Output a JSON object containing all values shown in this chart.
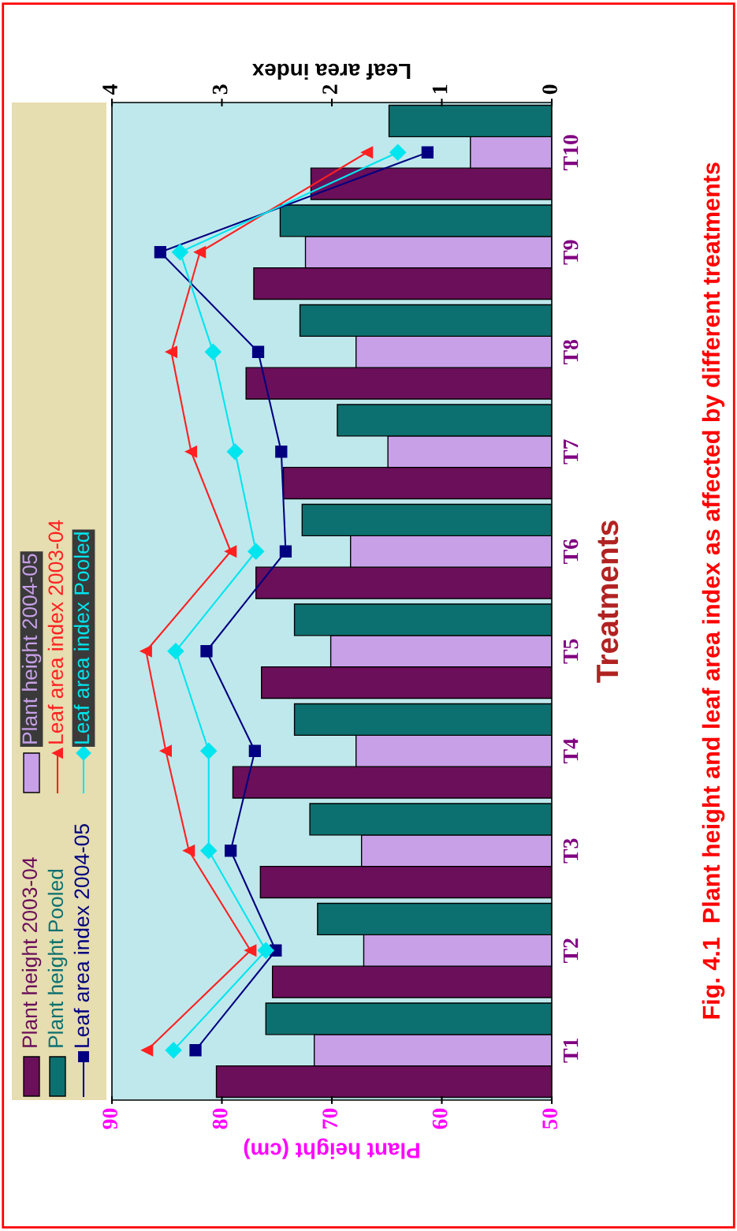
{
  "chart_data": {
    "type": "bar",
    "orientation": "horizontal",
    "title": "Fig. 4.1  Plant height and leaf area index as affected by different treatments",
    "xlabel": "Plant height (cm)",
    "x2label": "Leaf area index",
    "ylabel": "Treatments",
    "categories": [
      "T10",
      "T9",
      "T8",
      "T7",
      "T6",
      "T5",
      "T4",
      "T3",
      "T2",
      "T1"
    ],
    "xlim": [
      90,
      50
    ],
    "xticks": [
      50,
      60,
      70,
      80,
      90
    ],
    "x2lim": [
      4,
      0
    ],
    "x2ticks": [
      0,
      1,
      2,
      3,
      4
    ],
    "grid": false,
    "legend": "left",
    "series": [
      {
        "name": "Plant height 2003-04",
        "color": "#6b0f5a",
        "values": [
          71.9,
          77.1,
          77.8,
          74.4,
          76.9,
          76.4,
          79.0,
          76.5,
          75.4,
          80.5
        ]
      },
      {
        "name": "Plant height 2004-05",
        "color": "#c8a0e8",
        "values": [
          57.4,
          72.4,
          67.8,
          64.9,
          68.3,
          70.1,
          67.8,
          67.3,
          67.1,
          71.6
        ]
      },
      {
        "name": "Plant height Pooled",
        "color": "#0d7070",
        "values": [
          64.8,
          74.7,
          72.9,
          69.5,
          72.7,
          73.4,
          73.4,
          72.0,
          71.3,
          76.0
        ]
      },
      {
        "name": "Leaf area index 2003-04",
        "type": "line",
        "axis": "x2",
        "marker": "triangle",
        "color": "#ff2020",
        "values": [
          1.68,
          3.2,
          3.46,
          3.28,
          2.92,
          3.69,
          3.51,
          3.3,
          2.74,
          3.68
        ]
      },
      {
        "name": "Leaf area index 2004-05",
        "type": "line",
        "axis": "x2",
        "marker": "square",
        "color": "#000080",
        "values": [
          1.13,
          3.56,
          2.67,
          2.46,
          2.42,
          3.14,
          2.7,
          2.92,
          2.51,
          3.24
        ]
      },
      {
        "name": "Leaf area index Pooled",
        "type": "line",
        "axis": "x2",
        "marker": "diamond",
        "color": "#00e5ee",
        "values": [
          1.4,
          3.38,
          3.08,
          2.88,
          2.69,
          3.42,
          3.12,
          3.12,
          2.6,
          3.44
        ]
      }
    ]
  }
}
